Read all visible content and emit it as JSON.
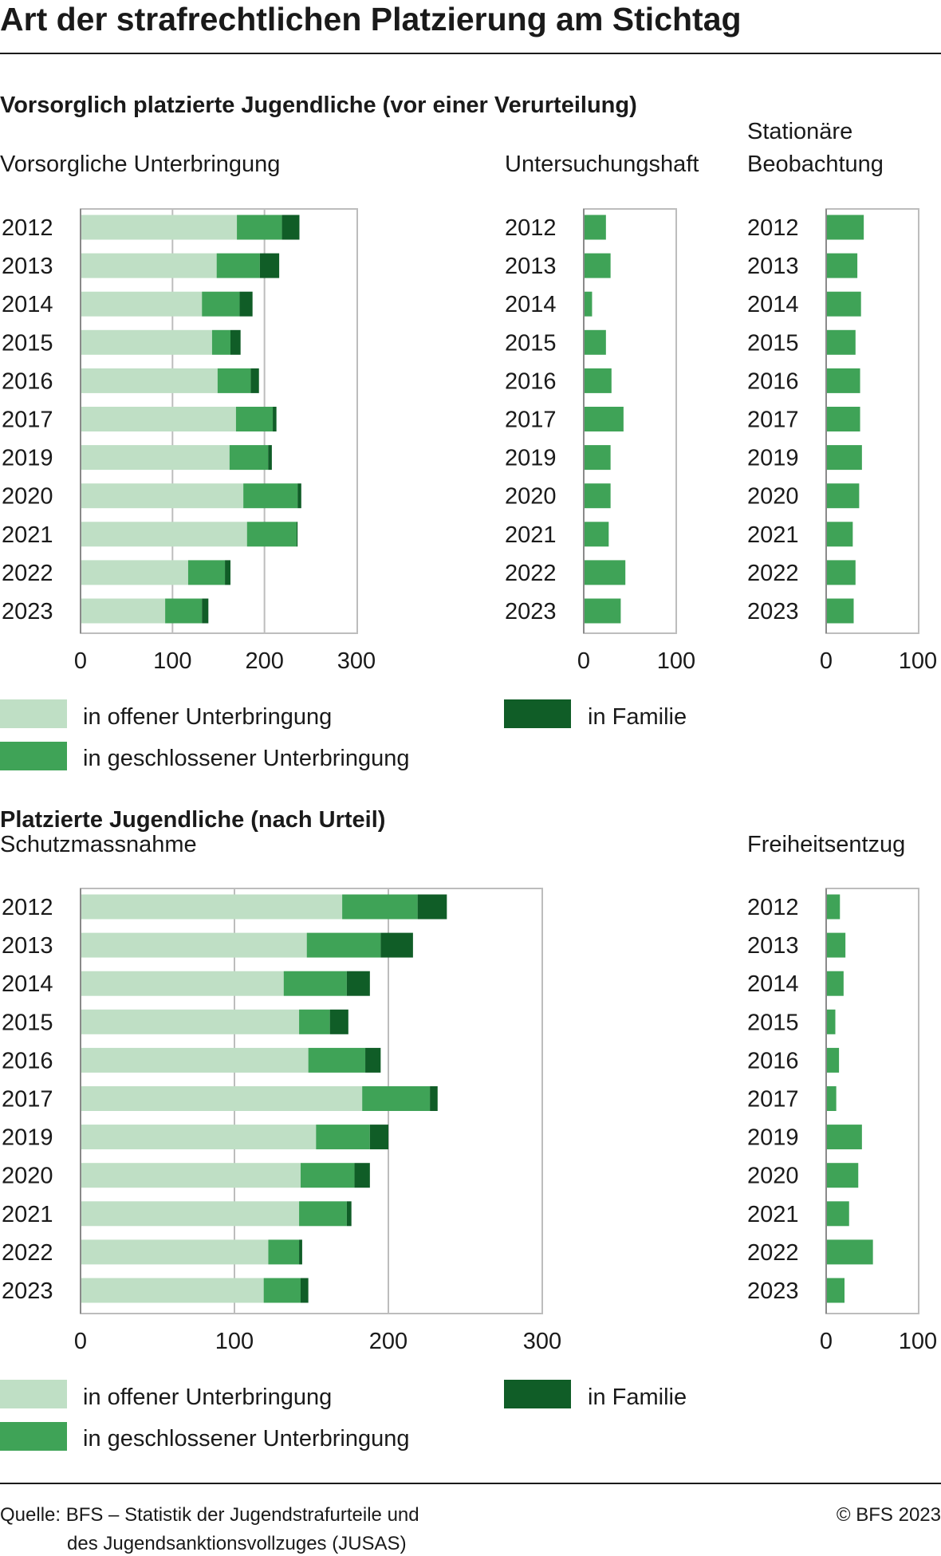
{
  "title": "Art der strafrechtlichen Platzierung am Stichtag",
  "section1": {
    "title": "Vorsorglich platzierte Jugendliche (vor einer Verurteilung)"
  },
  "section2": {
    "title": "Platzierte Jugendliche (nach Urteil)"
  },
  "legend": {
    "offen": "in offener Unterbringung",
    "geschlossen": "in geschlossener Unterbringung",
    "familie": "in Familie"
  },
  "colors": {
    "offen": "#bfdfc5",
    "geschlossen": "#3fa357",
    "familie": "#105d27",
    "frame": "#bdbdbd",
    "grid": "#bdbdbd"
  },
  "footer": {
    "source_line1": "Quelle: BFS – Statistik der Jugendstrafurteile und",
    "source_line2": "des Jugendsanktionsvollzuges (JUSAS)",
    "copyright": "© BFS 2023"
  },
  "chart_data": [
    {
      "type": "bar",
      "orientation": "horizontal",
      "stacked": true,
      "title": "Vorsorgliche Unterbringung",
      "categories": [
        "2012",
        "2013",
        "2014",
        "2015",
        "2016",
        "2017",
        "2019",
        "2020",
        "2021",
        "2022",
        "2023"
      ],
      "series": [
        {
          "name": "in offener Unterbringung",
          "values": [
            170,
            148,
            132,
            143,
            149,
            169,
            162,
            177,
            181,
            117,
            92
          ]
        },
        {
          "name": "in geschlossener Unterbringung",
          "values": [
            49,
            47,
            41,
            20,
            36,
            40,
            42,
            59,
            54,
            40,
            40
          ]
        },
        {
          "name": "in Familie",
          "values": [
            19,
            21,
            14,
            11,
            9,
            4,
            4,
            4,
            1,
            6,
            7
          ]
        }
      ],
      "xlim": [
        0,
        300
      ],
      "xticks": [
        0,
        100,
        200,
        300
      ]
    },
    {
      "type": "bar",
      "orientation": "horizontal",
      "title": "Untersuchungshaft",
      "categories": [
        "2012",
        "2013",
        "2014",
        "2015",
        "2016",
        "2017",
        "2019",
        "2020",
        "2021",
        "2022",
        "2023"
      ],
      "series": [
        {
          "values": [
            24,
            29,
            9,
            24,
            30,
            43,
            29,
            29,
            27,
            45,
            40
          ]
        }
      ],
      "xlim": [
        0,
        100
      ],
      "xticks": [
        0,
        100
      ]
    },
    {
      "type": "bar",
      "orientation": "horizontal",
      "title_lines": [
        "Stationäre",
        "Beobachtung"
      ],
      "categories": [
        "2012",
        "2013",
        "2014",
        "2015",
        "2016",
        "2017",
        "2019",
        "2020",
        "2021",
        "2022",
        "2023"
      ],
      "series": [
        {
          "values": [
            41,
            34,
            38,
            32,
            37,
            37,
            39,
            36,
            29,
            32,
            30
          ]
        }
      ],
      "xlim": [
        0,
        100
      ],
      "xticks": [
        0,
        100
      ]
    },
    {
      "type": "bar",
      "orientation": "horizontal",
      "stacked": true,
      "title": "Schutzmassnahme",
      "categories": [
        "2012",
        "2013",
        "2014",
        "2015",
        "2016",
        "2017",
        "2019",
        "2020",
        "2021",
        "2022",
        "2023"
      ],
      "series": [
        {
          "name": "in offener Unterbringung",
          "values": [
            170,
            147,
            132,
            142,
            148,
            183,
            153,
            143,
            142,
            122,
            119
          ]
        },
        {
          "name": "in geschlossener Unterbringung",
          "values": [
            49,
            48,
            41,
            20,
            37,
            44,
            35,
            35,
            31,
            20,
            24
          ]
        },
        {
          "name": "in Familie",
          "values": [
            19,
            21,
            15,
            12,
            10,
            5,
            12,
            10,
            3,
            2,
            5
          ]
        }
      ],
      "xlim": [
        0,
        300
      ],
      "xticks": [
        0,
        100,
        200,
        300
      ]
    },
    {
      "type": "bar",
      "orientation": "horizontal",
      "title": "Freiheitsentzug",
      "categories": [
        "2012",
        "2013",
        "2014",
        "2015",
        "2016",
        "2017",
        "2019",
        "2020",
        "2021",
        "2022",
        "2023"
      ],
      "series": [
        {
          "values": [
            15,
            21,
            19,
            10,
            14,
            11,
            39,
            35,
            25,
            51,
            20
          ]
        }
      ],
      "xlim": [
        0,
        100
      ],
      "xticks": [
        0,
        100
      ]
    }
  ]
}
